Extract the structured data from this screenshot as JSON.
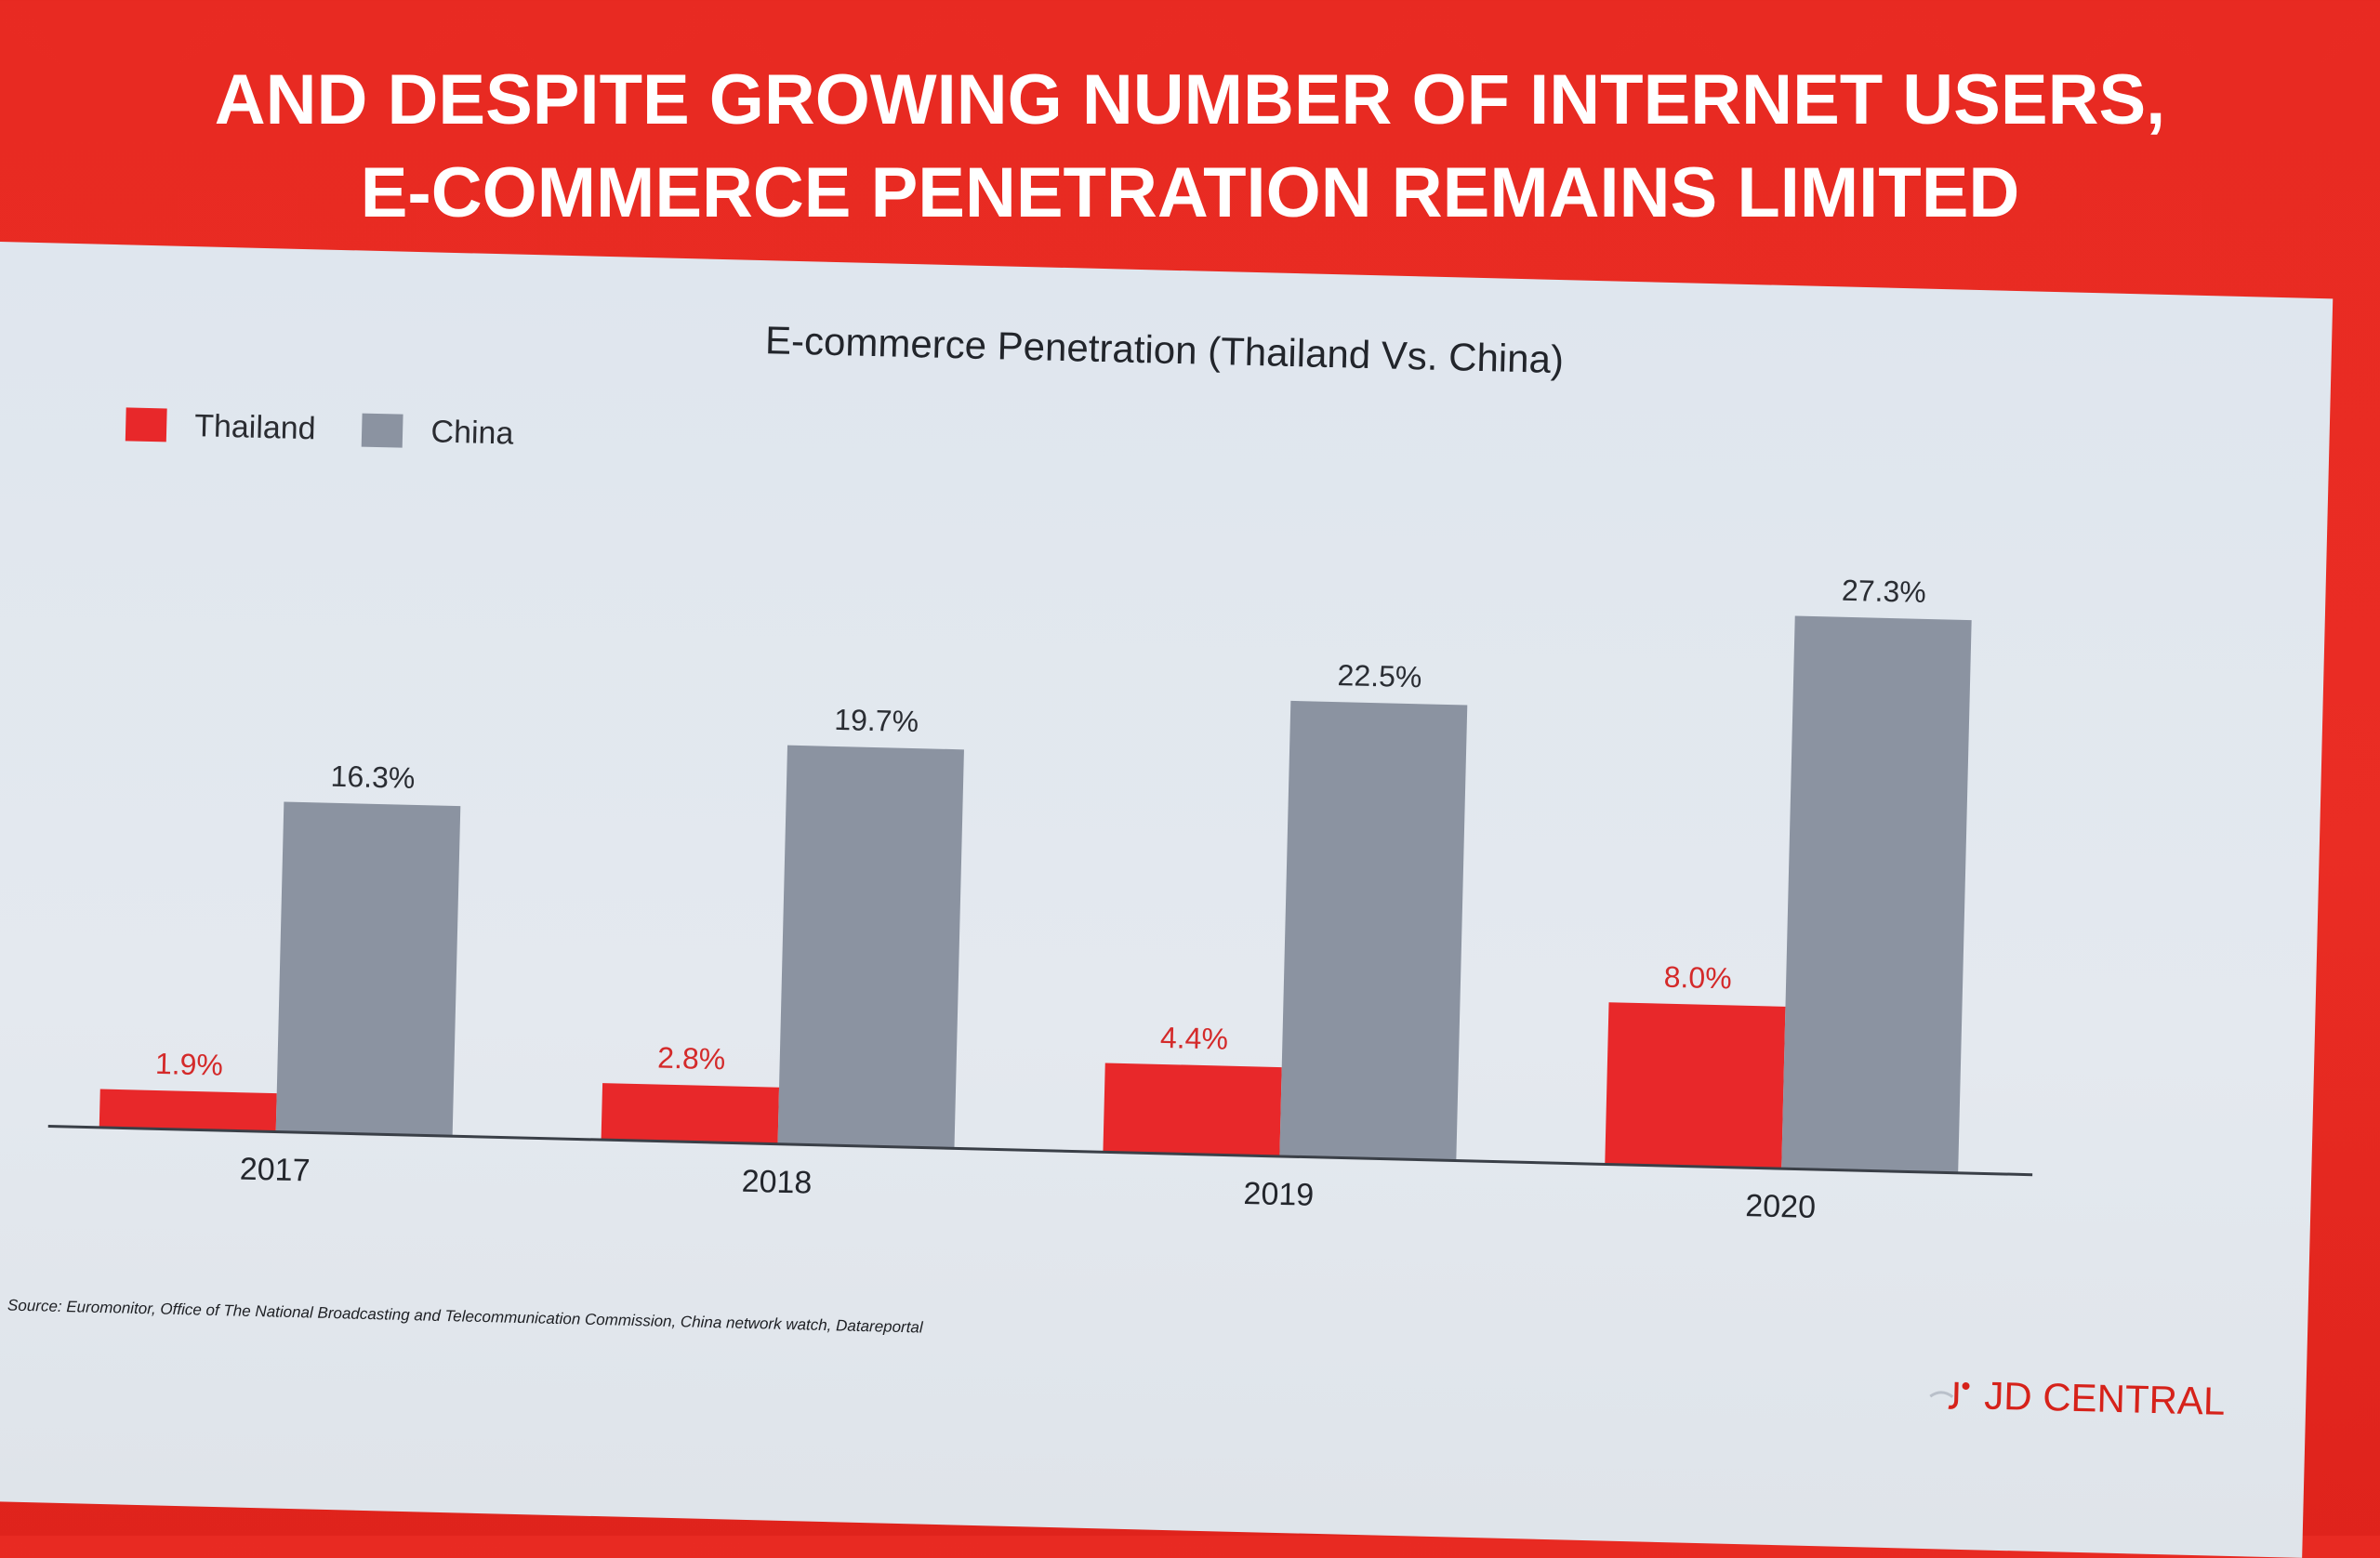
{
  "slide": {
    "title_lines": [
      "AND DESPITE GROWING NUMBER OF INTERNET USERS,",
      "E-COMMERCE PENETRATION REMAINS LIMITED"
    ],
    "source": "Source: Euromonitor, Office of The National Broadcasting and Telecommunication Commission, China network watch, Datareportal",
    "brand": "JD CENTRAL",
    "colors": {
      "background": "#e82a22",
      "panel": "#e1e7ee",
      "title_text": "#ffffff",
      "brand_text": "#d6221a"
    }
  },
  "chart_data": {
    "type": "bar",
    "title": "E-commerce Penetration (Thailand Vs. China)",
    "xlabel": "",
    "ylabel": "",
    "categories": [
      "2017",
      "2018",
      "2019",
      "2020"
    ],
    "series": [
      {
        "name": "Thailand",
        "color": "#e8282a",
        "values": [
          1.9,
          2.8,
          4.4,
          8.0
        ],
        "labels": [
          "1.9%",
          "2.8%",
          "4.4%",
          "8.0%"
        ],
        "label_color": "#d42a2a"
      },
      {
        "name": "China",
        "color": "#8b93a1",
        "values": [
          16.3,
          19.7,
          22.5,
          27.3
        ],
        "labels": [
          "16.3%",
          "19.7%",
          "22.5%",
          "27.3%"
        ],
        "label_color": "#2a2d33"
      }
    ],
    "ylim": [
      0,
      28
    ],
    "grid": false,
    "legend_position": "top-left"
  }
}
